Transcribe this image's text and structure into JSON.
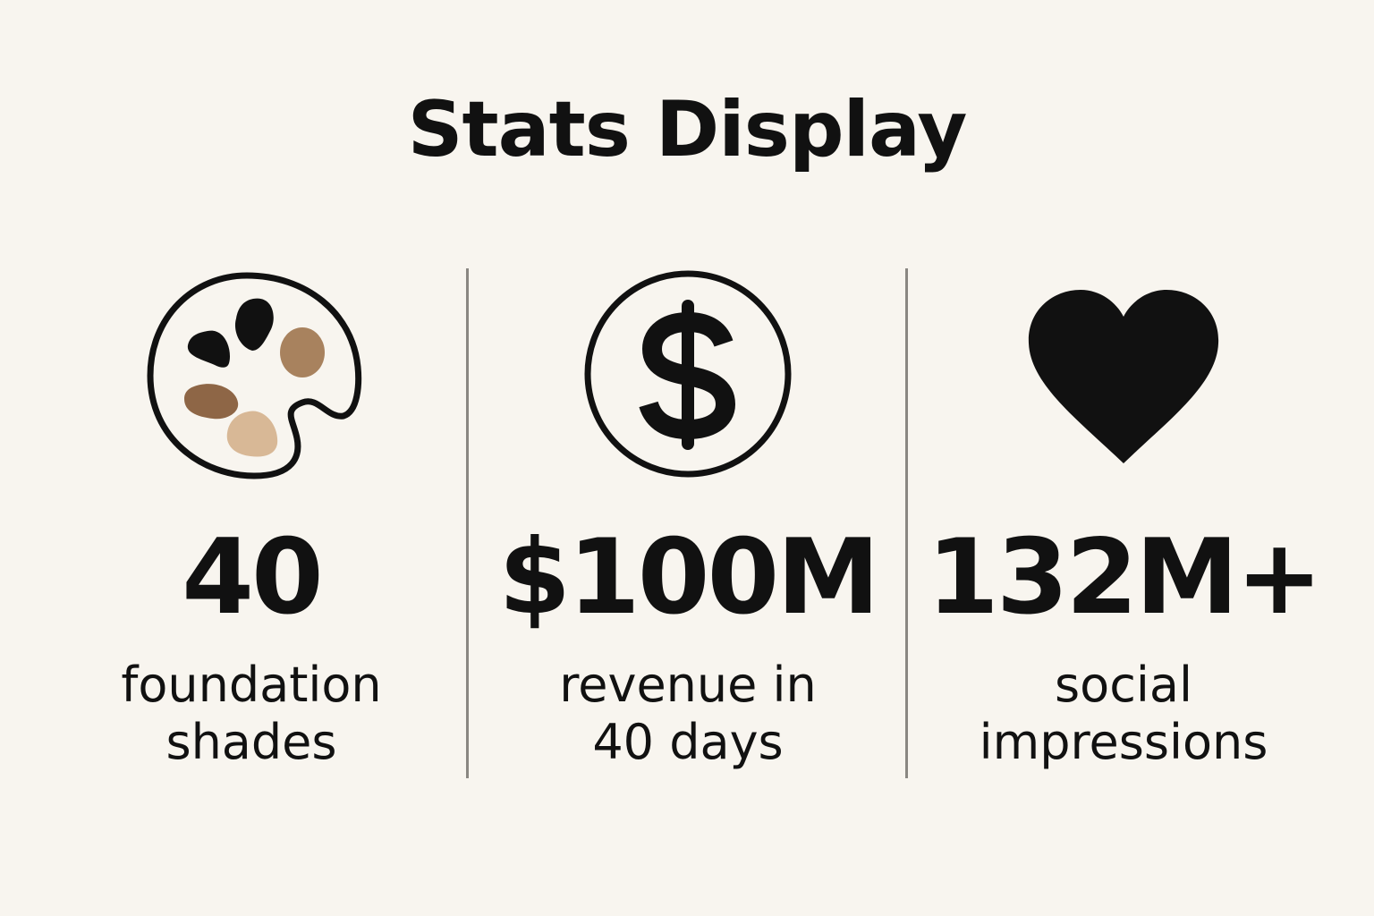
{
  "title": "Stats Display",
  "stats": [
    {
      "icon": "palette-icon",
      "value": "40",
      "label_lines": [
        "foundation",
        "shades"
      ]
    },
    {
      "icon": "dollar-circle-icon",
      "value": "$100M",
      "label_lines": [
        "revenue in",
        "40 days"
      ]
    },
    {
      "icon": "heart-icon",
      "value": "132M+",
      "label_lines": [
        "social",
        "impressions"
      ]
    }
  ],
  "colors": {
    "background": "#f8f5ef",
    "text": "#111111",
    "divider": "#8a8782",
    "shade_dark": "#111111",
    "shade_medium": "#a8825e",
    "shade_brown": "#8e6646",
    "shade_light": "#d8b896"
  }
}
